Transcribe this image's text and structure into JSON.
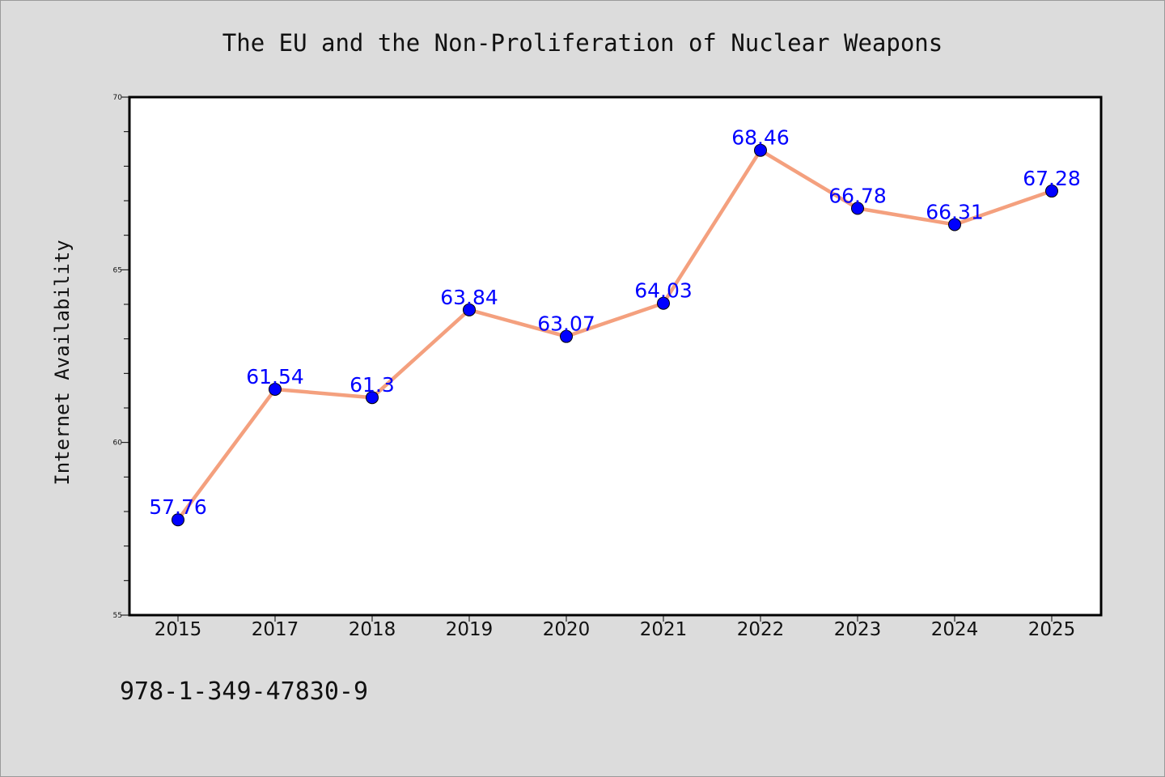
{
  "chart_data": {
    "type": "line",
    "title": "The EU and the Non-Proliferation of Nuclear Weapons",
    "xlabel": "",
    "ylabel": "Internet Availability",
    "categories": [
      "2015",
      "2017",
      "2018",
      "2019",
      "2020",
      "2021",
      "2022",
      "2023",
      "2024",
      "2025"
    ],
    "series": [
      {
        "values": [
          57.76,
          61.54,
          61.3,
          63.84,
          63.07,
          64.03,
          68.46,
          66.78,
          66.31,
          67.28
        ]
      }
    ],
    "data_labels": [
      "57.76",
      "61.54",
      "61.3",
      "63.84",
      "63.07",
      "64.03",
      "68.46",
      "66.78",
      "66.31",
      "67.28"
    ],
    "ylim": [
      55,
      70
    ],
    "yticks": [
      55,
      60,
      65,
      70
    ],
    "grid": false,
    "legend": "none",
    "colors": {
      "line": "#f4a07e",
      "marker": "#0000ff",
      "label": "#0000ff",
      "background": "#dcdcdc",
      "plot_bg": "#ffffff"
    }
  },
  "footer": {
    "isbn": "978-1-349-47830-9"
  }
}
